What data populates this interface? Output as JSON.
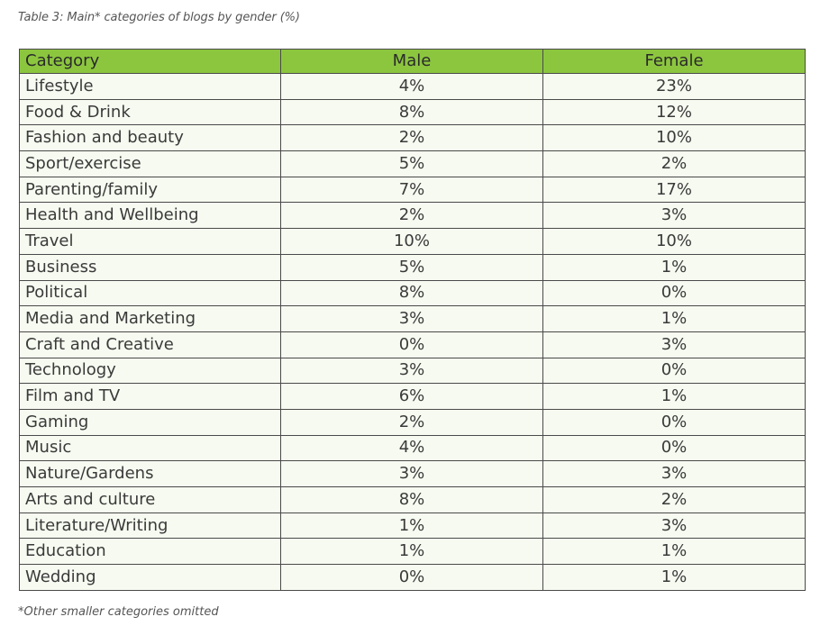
{
  "caption": "Table 3: Main* categories of blogs by gender (%)",
  "footnote": "*Other smaller categories omitted",
  "colors": {
    "header_bg": "#8cc63f",
    "row_bg": "#f6faf0",
    "border": "#4a4a4a"
  },
  "table": {
    "headers": [
      "Category",
      "Male",
      "Female"
    ],
    "rows": [
      [
        "Lifestyle",
        "4%",
        "23%"
      ],
      [
        "Food & Drink",
        "8%",
        "12%"
      ],
      [
        "Fashion and beauty",
        "2%",
        "10%"
      ],
      [
        "Sport/exercise",
        "5%",
        "2%"
      ],
      [
        "Parenting/family",
        "7%",
        "17%"
      ],
      [
        "Health and Wellbeing",
        "2%",
        "3%"
      ],
      [
        "Travel",
        "10%",
        "10%"
      ],
      [
        "Business",
        "5%",
        "1%"
      ],
      [
        "Political",
        "8%",
        "0%"
      ],
      [
        "Media and Marketing",
        "3%",
        "1%"
      ],
      [
        "Craft and Creative",
        "0%",
        "3%"
      ],
      [
        "Technology",
        "3%",
        "0%"
      ],
      [
        "Film and TV",
        "6%",
        "1%"
      ],
      [
        "Gaming",
        "2%",
        "0%"
      ],
      [
        "Music",
        "4%",
        "0%"
      ],
      [
        "Nature/Gardens",
        "3%",
        "3%"
      ],
      [
        "Arts and culture",
        "8%",
        "2%"
      ],
      [
        "Literature/Writing",
        "1%",
        "3%"
      ],
      [
        "Education",
        "1%",
        "1%"
      ],
      [
        "Wedding",
        "0%",
        "1%"
      ]
    ]
  }
}
